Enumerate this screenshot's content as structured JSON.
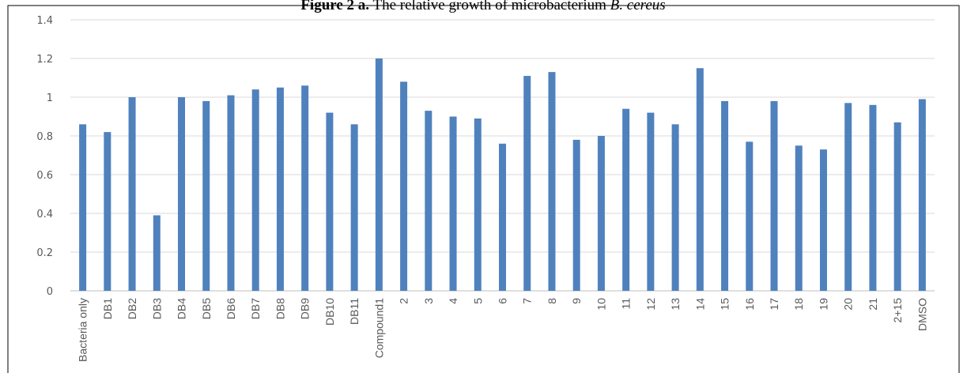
{
  "chart_data": {
    "type": "bar",
    "title_label": "Figure 2 a.",
    "title": "The relative growth of microbacterium",
    "title_species": "B. cereus",
    "categories": [
      "Bacteria only",
      "DB1",
      "DB2",
      "DB3",
      "DB4",
      "DB5",
      "DB6",
      "DB7",
      "DB8",
      "DB9",
      "DB10",
      "DB11",
      "Compound1",
      "2",
      "3",
      "4",
      "5",
      "6",
      "7",
      "8",
      "9",
      "10",
      "11",
      "12",
      "13",
      "14",
      "15",
      "16",
      "17",
      "18",
      "19",
      "20",
      "21",
      "2+15",
      "DMSO"
    ],
    "values": [
      0.86,
      0.82,
      1.0,
      0.39,
      1.0,
      0.98,
      1.01,
      1.04,
      1.05,
      1.06,
      0.92,
      0.86,
      1.2,
      1.08,
      0.93,
      0.9,
      0.89,
      0.76,
      1.11,
      1.13,
      0.78,
      0.8,
      0.94,
      0.92,
      0.86,
      1.15,
      0.98,
      0.77,
      0.98,
      0.75,
      0.73,
      0.97,
      0.96,
      0.87,
      0.99
    ],
    "color": "#4f81bd",
    "ylim": [
      0,
      1.4
    ],
    "yticks": [
      0,
      0.2,
      0.4,
      0.6,
      0.8,
      1,
      1.2,
      1.4
    ],
    "grid": true
  }
}
